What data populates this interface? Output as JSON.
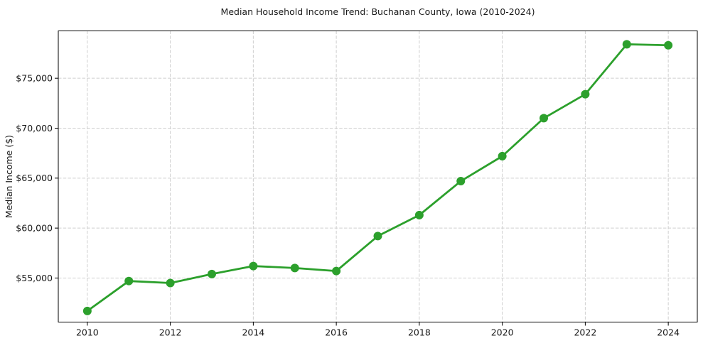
{
  "chart_data": {
    "type": "line",
    "title": "Median Household Income Trend: Buchanan County, Iowa (2010-2024)",
    "xlabel": "",
    "ylabel": "Median Income ($)",
    "x": [
      2010,
      2011,
      2012,
      2013,
      2014,
      2015,
      2016,
      2017,
      2018,
      2019,
      2020,
      2021,
      2022,
      2023,
      2024
    ],
    "values": [
      51700,
      54700,
      54500,
      55400,
      56200,
      56000,
      55700,
      59200,
      61300,
      64700,
      67200,
      71000,
      73400,
      78400,
      78300
    ],
    "line_color": "#2ca02c",
    "marker": "circle",
    "marker_size": 6,
    "line_width": 2.8,
    "grid": true,
    "grid_style": "dashed",
    "grid_color": "#cfcfcf",
    "legend": null,
    "xlim": [
      2009.3,
      2024.7
    ],
    "ylim": [
      50590,
      79740
    ],
    "xticks": {
      "values": [
        2010,
        2012,
        2014,
        2016,
        2018,
        2020,
        2022,
        2024
      ],
      "labels": [
        "2010",
        "2012",
        "2014",
        "2016",
        "2018",
        "2020",
        "2022",
        "2024"
      ]
    },
    "yticks": {
      "values": [
        55000,
        60000,
        65000,
        70000,
        75000
      ],
      "labels": [
        "$55,000",
        "$60,000",
        "$65,000",
        "$70,000",
        "$75,000"
      ]
    }
  }
}
